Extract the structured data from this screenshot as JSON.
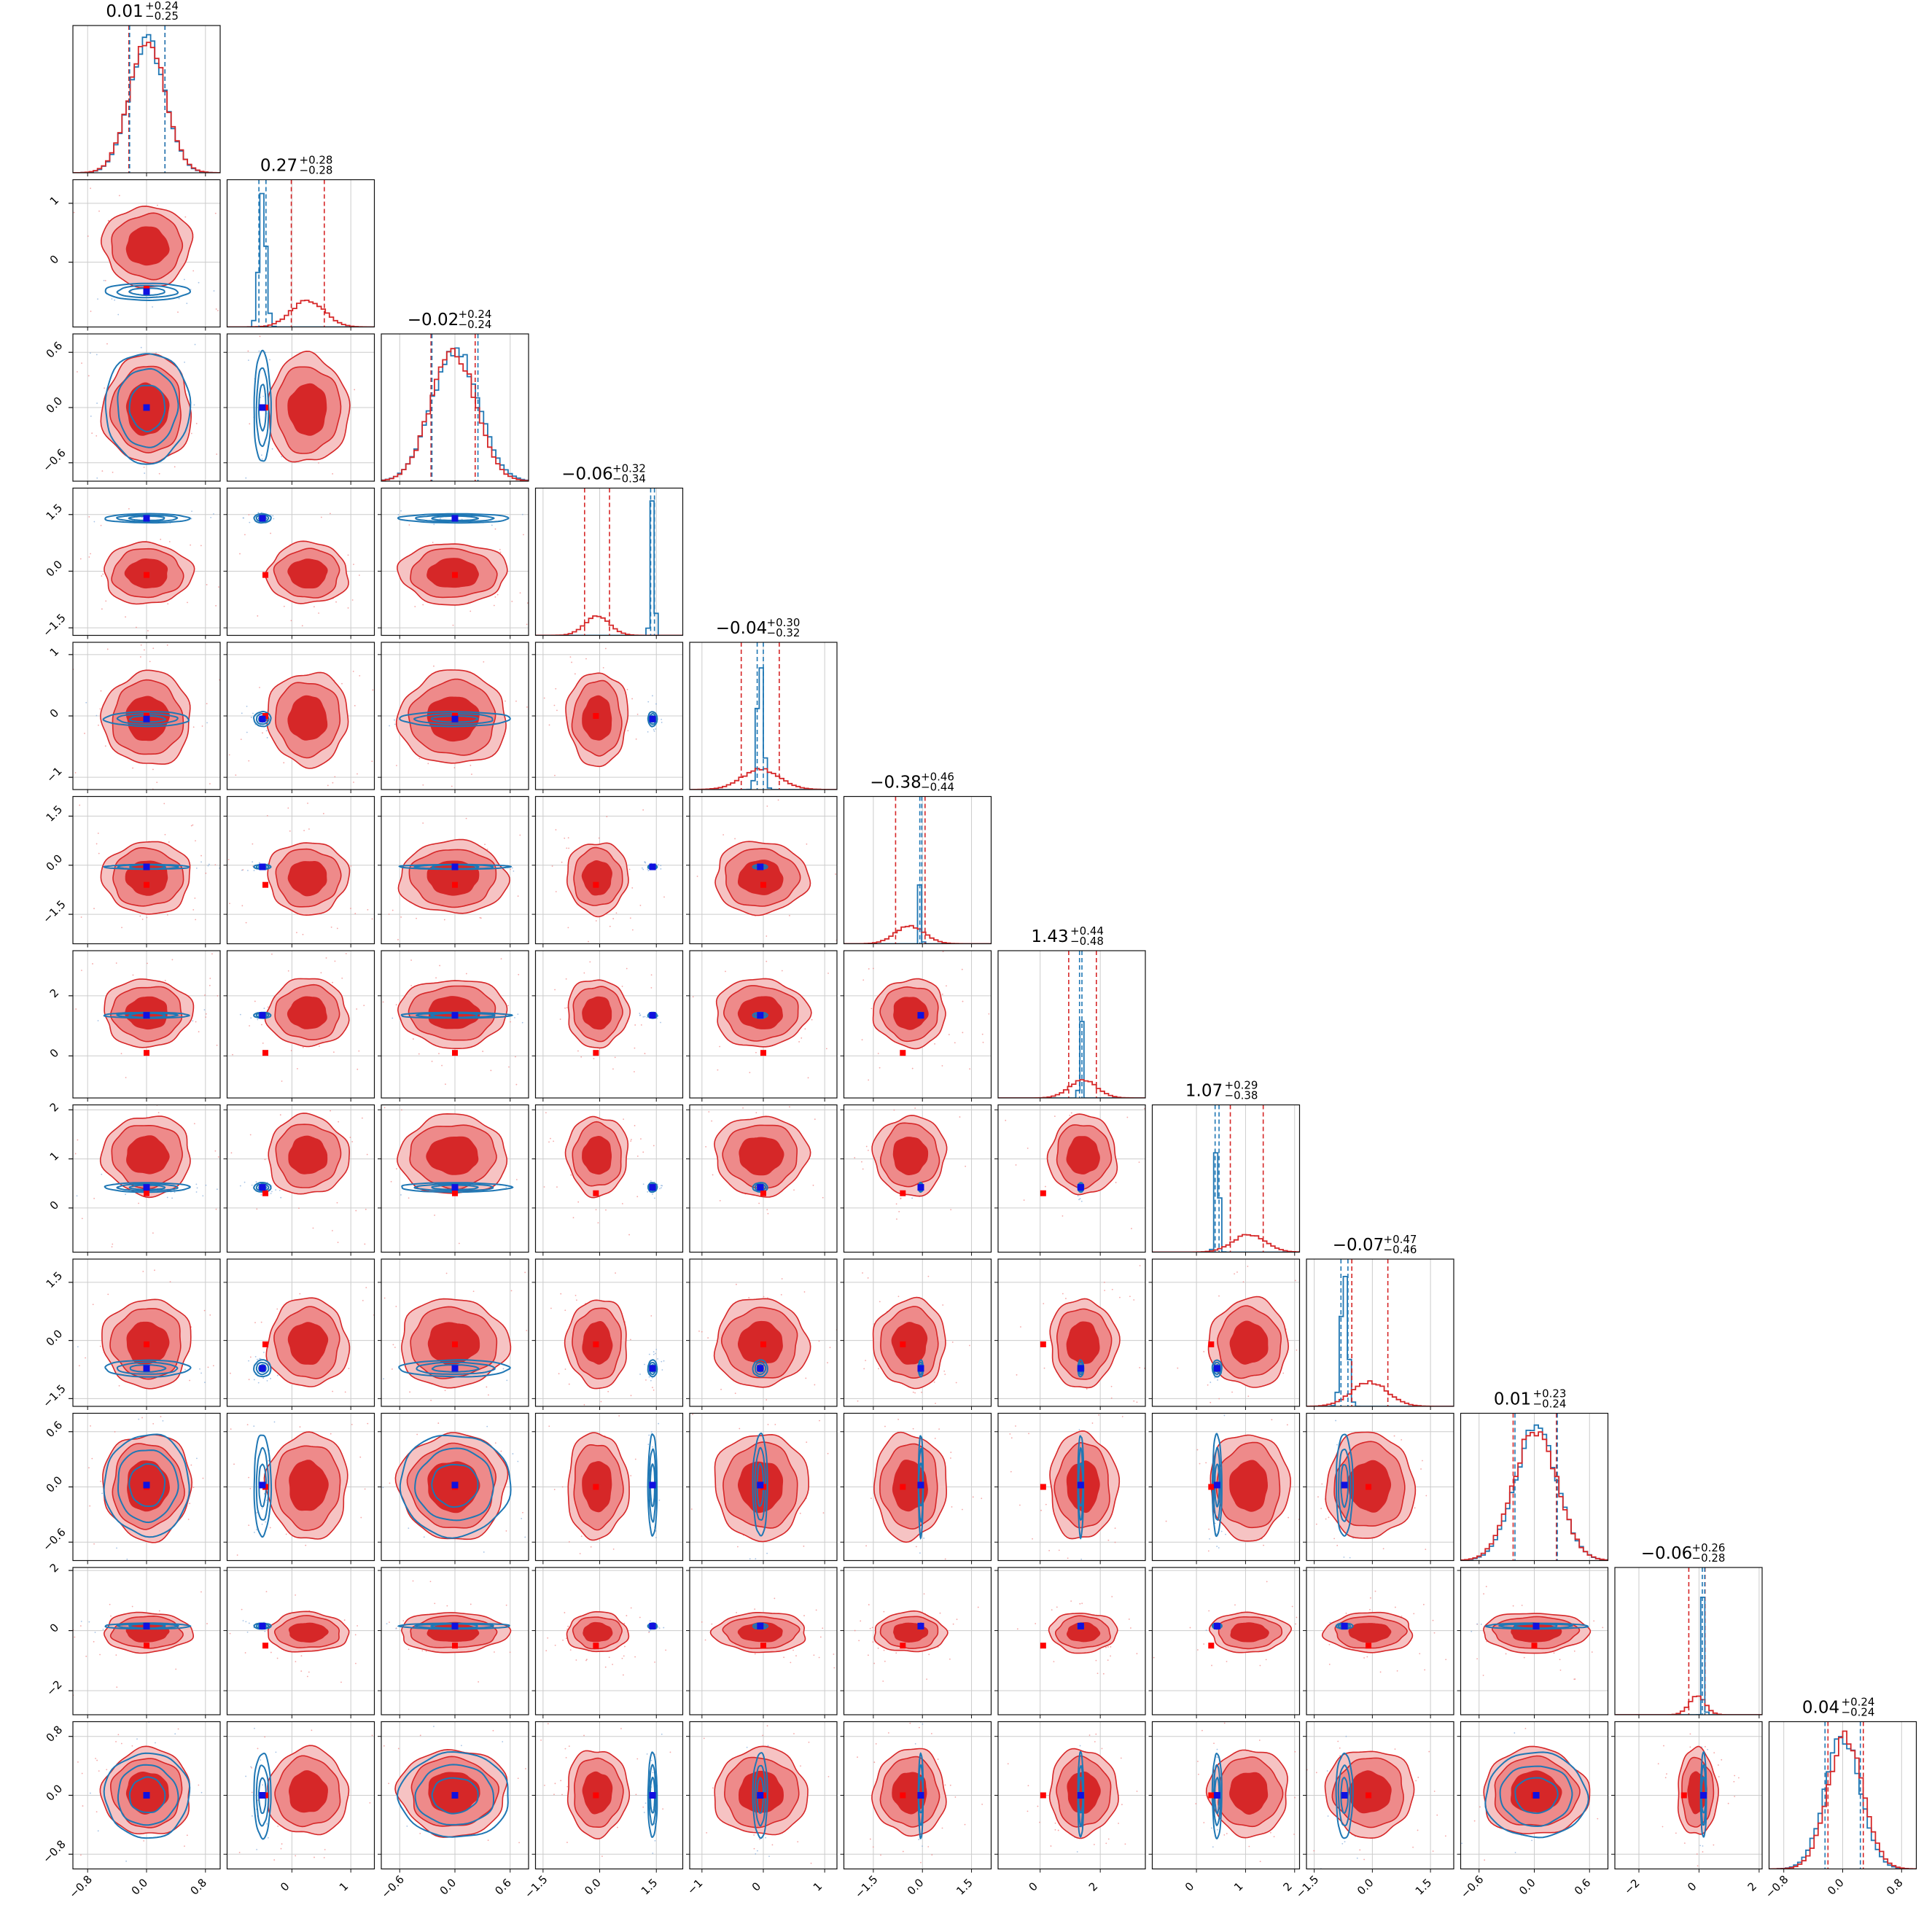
{
  "chart_data": {
    "type": "corner",
    "n_params": 12,
    "grid": true,
    "colors": {
      "red": "#d62728",
      "red_light": "#ee8a8a",
      "blue": "#1f77b4",
      "marker_blue": "#1010e0",
      "marker_red": "#ff0000"
    },
    "titles": [
      {
        "value": "0.01",
        "plus": "+0.24",
        "minus": "−0.25"
      },
      {
        "value": "0.27",
        "plus": "+0.28",
        "minus": "−0.28"
      },
      {
        "value": "−0.02",
        "plus": "+0.24",
        "minus": "−0.24"
      },
      {
        "value": "−0.06",
        "plus": "+0.32",
        "minus": "−0.34"
      },
      {
        "value": "−0.04",
        "plus": "+0.30",
        "minus": "−0.32"
      },
      {
        "value": "−0.38",
        "plus": "+0.46",
        "minus": "−0.44"
      },
      {
        "value": "1.43",
        "plus": "+0.44",
        "minus": "−0.48"
      },
      {
        "value": "1.07",
        "plus": "+0.29",
        "minus": "−0.38"
      },
      {
        "value": "−0.07",
        "plus": "+0.47",
        "minus": "−0.46"
      },
      {
        "value": "0.01",
        "plus": "+0.23",
        "minus": "−0.24"
      },
      {
        "value": "−0.06",
        "plus": "+0.26",
        "minus": "−0.28"
      },
      {
        "value": "0.04",
        "plus": "+0.24",
        "minus": "−0.24"
      }
    ],
    "axes": [
      {
        "range": [
          -1.0,
          1.0
        ],
        "ticks": [
          -0.8,
          0.0,
          0.8
        ],
        "tick_labels": [
          "−0.8",
          "0.0",
          "0.8"
        ]
      },
      {
        "range": [
          -1.1,
          1.4
        ],
        "ticks": [
          0,
          1
        ],
        "tick_labels": [
          "0",
          "1"
        ]
      },
      {
        "range": [
          -0.8,
          0.8
        ],
        "ticks": [
          -0.6,
          0.0,
          0.6
        ],
        "tick_labels": [
          "−0.6",
          "0.0",
          "0.6"
        ]
      },
      {
        "range": [
          -1.7,
          2.2
        ],
        "ticks": [
          -1.5,
          0.0,
          1.5
        ],
        "tick_labels": [
          "−1.5",
          "0.0",
          "1.5"
        ]
      },
      {
        "range": [
          -1.2,
          1.2
        ],
        "ticks": [
          -1,
          0,
          1
        ],
        "tick_labels": [
          "−1",
          "0",
          "1"
        ]
      },
      {
        "range": [
          -2.4,
          2.1
        ],
        "ticks": [
          -1.5,
          0.0,
          1.5
        ],
        "tick_labels": [
          "−1.5",
          "0.0",
          "1.5"
        ]
      },
      {
        "range": [
          -1.4,
          3.5
        ],
        "ticks": [
          0,
          2
        ],
        "tick_labels": [
          "0",
          "2"
        ]
      },
      {
        "range": [
          -0.9,
          2.1
        ],
        "ticks": [
          0,
          1,
          2
        ],
        "tick_labels": [
          "0",
          "1",
          "2"
        ]
      },
      {
        "range": [
          -1.7,
          2.1
        ],
        "ticks": [
          -1.5,
          0.0,
          1.5
        ],
        "tick_labels": [
          "−1.5",
          "0.0",
          "1.5"
        ]
      },
      {
        "range": [
          -0.8,
          0.8
        ],
        "ticks": [
          -0.6,
          0.0,
          0.6
        ],
        "tick_labels": [
          "−0.6",
          "0.0",
          "0.6"
        ]
      },
      {
        "range": [
          -2.8,
          2.1
        ],
        "ticks": [
          -2,
          0,
          2
        ],
        "tick_labels": [
          "−2",
          "0",
          "2"
        ]
      },
      {
        "range": [
          -1.0,
          1.0
        ],
        "ticks": [
          -0.8,
          0.0,
          0.8
        ],
        "tick_labels": [
          "−0.8",
          "0.0",
          "0.8"
        ]
      }
    ],
    "red_posterior": {
      "mean": [
        0.01,
        0.27,
        -0.02,
        -0.06,
        -0.04,
        -0.38,
        1.43,
        1.07,
        -0.07,
        0.01,
        -0.06,
        0.04
      ],
      "sigma": [
        0.245,
        0.28,
        0.24,
        0.33,
        0.31,
        0.45,
        0.46,
        0.33,
        0.465,
        0.235,
        0.27,
        0.24
      ],
      "quantiles_16_50_84": [
        [
          -0.24,
          0.01,
          0.25
        ],
        [
          -0.01,
          0.27,
          0.55
        ],
        [
          -0.26,
          -0.02,
          0.22
        ],
        [
          -0.4,
          -0.06,
          0.26
        ],
        [
          -0.36,
          -0.04,
          0.26
        ],
        [
          -0.82,
          -0.38,
          0.08
        ],
        [
          0.95,
          1.43,
          1.87
        ],
        [
          0.69,
          1.07,
          1.36
        ],
        [
          -0.53,
          -0.07,
          0.4
        ],
        [
          -0.23,
          0.01,
          0.24
        ],
        [
          -0.34,
          -0.06,
          0.2
        ],
        [
          -0.2,
          0.04,
          0.28
        ]
      ]
    },
    "blue_posterior": {
      "mean": [
        0.01,
        -0.5,
        0.0,
        1.4,
        -0.05,
        -0.05,
        1.35,
        0.42,
        -0.72,
        0.02,
        0.15,
        0.0
      ],
      "sigma": [
        0.24,
        0.06,
        0.25,
        0.05,
        0.05,
        0.03,
        0.04,
        0.04,
        0.09,
        0.23,
        0.04,
        0.24
      ]
    },
    "markers": {
      "blue_true_values": [
        0.0,
        -0.5,
        0.0,
        1.4,
        -0.05,
        -0.05,
        1.35,
        0.42,
        -0.72,
        0.02,
        0.15,
        0.0
      ],
      "red_true_values": [
        0.0,
        -0.45,
        0.0,
        -0.1,
        0.0,
        -0.6,
        0.1,
        0.3,
        -0.1,
        0.0,
        -0.5,
        0.0
      ]
    }
  }
}
